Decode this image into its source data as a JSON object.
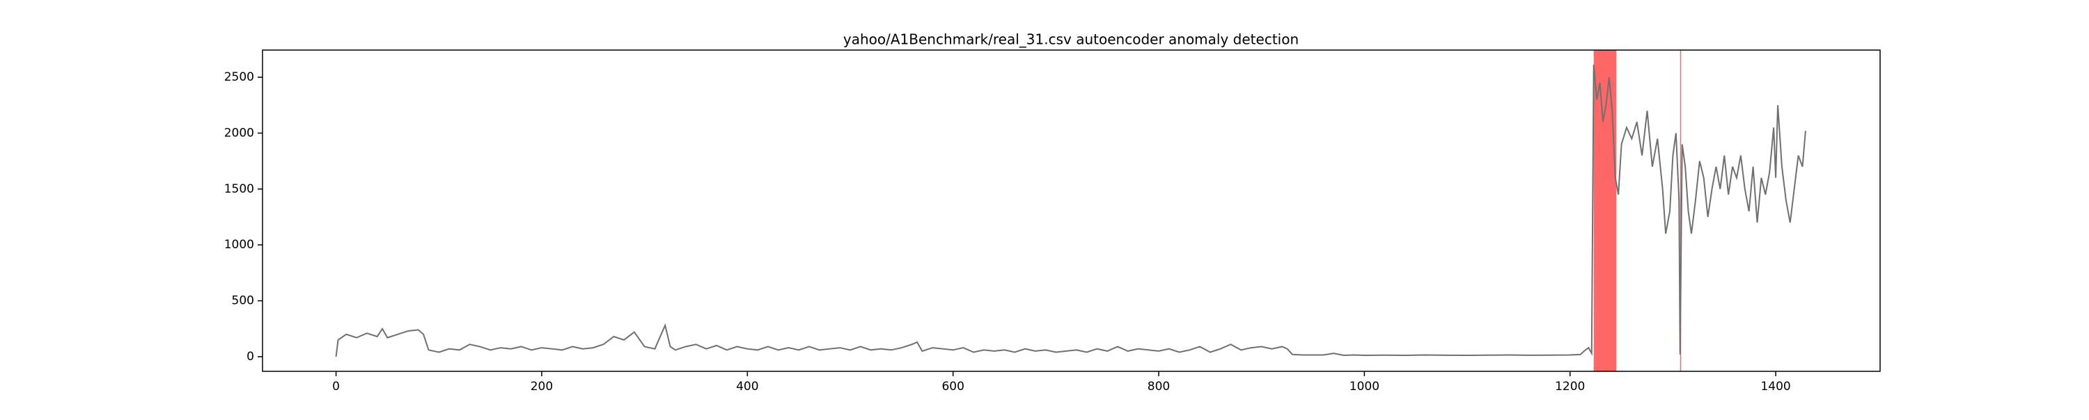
{
  "chart_data": {
    "type": "line",
    "title": "yahoo/A1Benchmark/real_31.csv autoencoder anomaly detection",
    "x": [
      0,
      2,
      10,
      20,
      30,
      40,
      45,
      50,
      60,
      70,
      80,
      85,
      90,
      100,
      110,
      120,
      130,
      140,
      150,
      160,
      170,
      180,
      190,
      200,
      210,
      220,
      230,
      240,
      250,
      260,
      270,
      280,
      290,
      300,
      310,
      320,
      325,
      330,
      340,
      350,
      360,
      370,
      380,
      390,
      400,
      410,
      420,
      430,
      440,
      450,
      460,
      470,
      480,
      490,
      500,
      510,
      520,
      530,
      540,
      550,
      560,
      565,
      570,
      580,
      590,
      600,
      610,
      620,
      630,
      640,
      650,
      660,
      670,
      680,
      690,
      700,
      710,
      720,
      730,
      740,
      750,
      760,
      770,
      780,
      790,
      800,
      810,
      820,
      830,
      840,
      850,
      860,
      870,
      880,
      890,
      900,
      910,
      920,
      925,
      930,
      940,
      950,
      960,
      970,
      980,
      990,
      1000,
      1020,
      1040,
      1060,
      1080,
      1100,
      1120,
      1140,
      1160,
      1180,
      1200,
      1210,
      1215,
      1218,
      1221,
      1223,
      1226,
      1229,
      1232,
      1235,
      1238,
      1241,
      1244,
      1247,
      1250,
      1255,
      1260,
      1265,
      1270,
      1275,
      1280,
      1285,
      1290,
      1293,
      1297,
      1300,
      1303,
      1306,
      1307,
      1309,
      1312,
      1315,
      1318,
      1322,
      1326,
      1330,
      1334,
      1338,
      1342,
      1346,
      1350,
      1354,
      1358,
      1362,
      1366,
      1370,
      1374,
      1378,
      1382,
      1386,
      1390,
      1394,
      1398,
      1400,
      1402,
      1406,
      1410,
      1414,
      1418,
      1422,
      1426,
      1429
    ],
    "series": [
      {
        "color": "#707070",
        "values": [
          0,
          150,
          200,
          170,
          210,
          180,
          250,
          170,
          200,
          230,
          240,
          200,
          60,
          40,
          70,
          60,
          110,
          90,
          60,
          80,
          70,
          90,
          60,
          80,
          70,
          60,
          90,
          70,
          80,
          110,
          180,
          150,
          220,
          90,
          70,
          280,
          90,
          60,
          90,
          110,
          70,
          100,
          60,
          90,
          70,
          60,
          90,
          60,
          80,
          60,
          90,
          60,
          70,
          80,
          60,
          90,
          60,
          70,
          60,
          80,
          110,
          130,
          50,
          80,
          70,
          60,
          80,
          40,
          60,
          50,
          60,
          40,
          70,
          50,
          60,
          40,
          50,
          60,
          40,
          70,
          50,
          90,
          50,
          70,
          60,
          50,
          70,
          40,
          60,
          90,
          40,
          70,
          110,
          60,
          80,
          90,
          70,
          90,
          70,
          20,
          15,
          15,
          15,
          30,
          12,
          15,
          12,
          14,
          12,
          15,
          13,
          12,
          14,
          15,
          13,
          14,
          15,
          20,
          60,
          80,
          30,
          2612,
          2300,
          2450,
          2100,
          2250,
          2500,
          2200,
          1600,
          1450,
          1900,
          2050,
          1950,
          2100,
          1800,
          2200,
          1700,
          1950,
          1500,
          1100,
          1300,
          1800,
          2000,
          1400,
          20,
          1900,
          1700,
          1300,
          1100,
          1400,
          1750,
          1600,
          1250,
          1500,
          1700,
          1500,
          1800,
          1450,
          1700,
          1600,
          1800,
          1500,
          1300,
          1700,
          1200,
          1600,
          1450,
          1650,
          2050,
          1600,
          2250,
          1700,
          1400,
          1200,
          1500,
          1800,
          1700,
          2020
        ]
      }
    ],
    "anomaly_spans": [
      [
        1223,
        1245
      ],
      [
        1307,
        1308
      ]
    ],
    "span_color": "#ff0000",
    "xlim": [
      -71.5,
      1501.5
    ],
    "ylim": [
      -131,
      2743
    ],
    "xticks": [
      0,
      200,
      400,
      600,
      800,
      1000,
      1200,
      1400
    ],
    "yticks": [
      0,
      500,
      1000,
      1500,
      2000,
      2500
    ]
  }
}
